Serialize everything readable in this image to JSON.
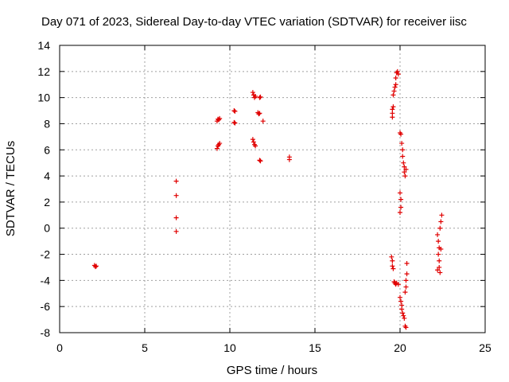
{
  "chart_data": {
    "type": "scatter",
    "title": "Day 071 of 2023, Sidereal Day-to-day VTEC variation (SDTVAR) for receiver iisc",
    "xlabel": "GPS time / hours",
    "ylabel": "SDTVAR / TECUs",
    "xlim": [
      0,
      25
    ],
    "ylim": [
      -8,
      14
    ],
    "xticks": [
      0,
      5,
      10,
      15,
      20,
      25
    ],
    "yticks": [
      -8,
      -6,
      -4,
      -2,
      0,
      2,
      4,
      6,
      8,
      10,
      12,
      14
    ],
    "grid": true,
    "marker": "plus",
    "color": "#e00000",
    "series": [
      {
        "name": "SDTVAR",
        "points": [
          [
            2.05,
            -2.85
          ],
          [
            2.1,
            -2.95
          ],
          [
            2.15,
            -2.9
          ],
          [
            6.85,
            3.6
          ],
          [
            6.85,
            2.5
          ],
          [
            6.85,
            0.8
          ],
          [
            6.85,
            -0.25
          ],
          [
            9.25,
            8.2
          ],
          [
            9.3,
            8.35
          ],
          [
            9.35,
            8.3
          ],
          [
            9.4,
            8.4
          ],
          [
            9.25,
            6.1
          ],
          [
            9.3,
            6.3
          ],
          [
            9.35,
            6.4
          ],
          [
            9.4,
            6.5
          ],
          [
            10.25,
            9.0
          ],
          [
            10.3,
            8.95
          ],
          [
            10.25,
            8.1
          ],
          [
            10.3,
            8.05
          ],
          [
            11.35,
            10.4
          ],
          [
            11.4,
            10.2
          ],
          [
            11.45,
            10.0
          ],
          [
            11.5,
            10.1
          ],
          [
            11.75,
            10.0
          ],
          [
            11.8,
            10.05
          ],
          [
            11.65,
            8.85
          ],
          [
            11.7,
            8.75
          ],
          [
            11.75,
            8.8
          ],
          [
            11.95,
            8.2
          ],
          [
            11.35,
            6.8
          ],
          [
            11.4,
            6.6
          ],
          [
            11.45,
            6.4
          ],
          [
            11.5,
            6.3
          ],
          [
            11.75,
            5.2
          ],
          [
            11.8,
            5.15
          ],
          [
            13.5,
            5.45
          ],
          [
            13.5,
            5.25
          ],
          [
            19.55,
            8.5
          ],
          [
            19.55,
            8.8
          ],
          [
            19.55,
            9.1
          ],
          [
            19.6,
            9.3
          ],
          [
            19.6,
            10.2
          ],
          [
            19.65,
            10.5
          ],
          [
            19.7,
            10.8
          ],
          [
            19.75,
            11.0
          ],
          [
            19.75,
            11.5
          ],
          [
            19.8,
            11.9
          ],
          [
            19.85,
            12.0
          ],
          [
            19.9,
            11.8
          ],
          [
            19.5,
            -2.2
          ],
          [
            19.55,
            -2.5
          ],
          [
            19.55,
            -2.9
          ],
          [
            19.6,
            -3.1
          ],
          [
            19.65,
            -4.1
          ],
          [
            19.7,
            -4.2
          ],
          [
            19.75,
            -4.3
          ],
          [
            19.8,
            -4.2
          ],
          [
            19.9,
            -4.3
          ],
          [
            20.0,
            7.3
          ],
          [
            20.05,
            7.2
          ],
          [
            20.1,
            6.5
          ],
          [
            20.15,
            6.0
          ],
          [
            20.15,
            5.5
          ],
          [
            20.2,
            5.0
          ],
          [
            20.25,
            4.7
          ],
          [
            20.25,
            4.3
          ],
          [
            20.3,
            4.0
          ],
          [
            20.35,
            4.5
          ],
          [
            20.0,
            2.7
          ],
          [
            20.05,
            2.2
          ],
          [
            20.05,
            1.6
          ],
          [
            20.0,
            1.2
          ],
          [
            20.0,
            -5.3
          ],
          [
            20.05,
            -5.6
          ],
          [
            20.1,
            -5.9
          ],
          [
            20.1,
            -6.2
          ],
          [
            20.15,
            -6.5
          ],
          [
            20.2,
            -6.7
          ],
          [
            20.25,
            -6.9
          ],
          [
            20.3,
            -7.5
          ],
          [
            20.35,
            -7.6
          ],
          [
            20.3,
            -4.9
          ],
          [
            20.35,
            -4.5
          ],
          [
            20.35,
            -4.0
          ],
          [
            20.4,
            -3.5
          ],
          [
            20.4,
            -2.7
          ],
          [
            22.2,
            -0.5
          ],
          [
            22.25,
            -1.0
          ],
          [
            22.3,
            -1.5
          ],
          [
            22.25,
            -2.0
          ],
          [
            22.3,
            -2.5
          ],
          [
            22.3,
            -3.0
          ],
          [
            22.35,
            -3.4
          ],
          [
            22.4,
            -1.6
          ],
          [
            22.35,
            0.0
          ],
          [
            22.4,
            0.5
          ],
          [
            22.45,
            1.0
          ],
          [
            22.2,
            -3.2
          ]
        ]
      }
    ]
  }
}
